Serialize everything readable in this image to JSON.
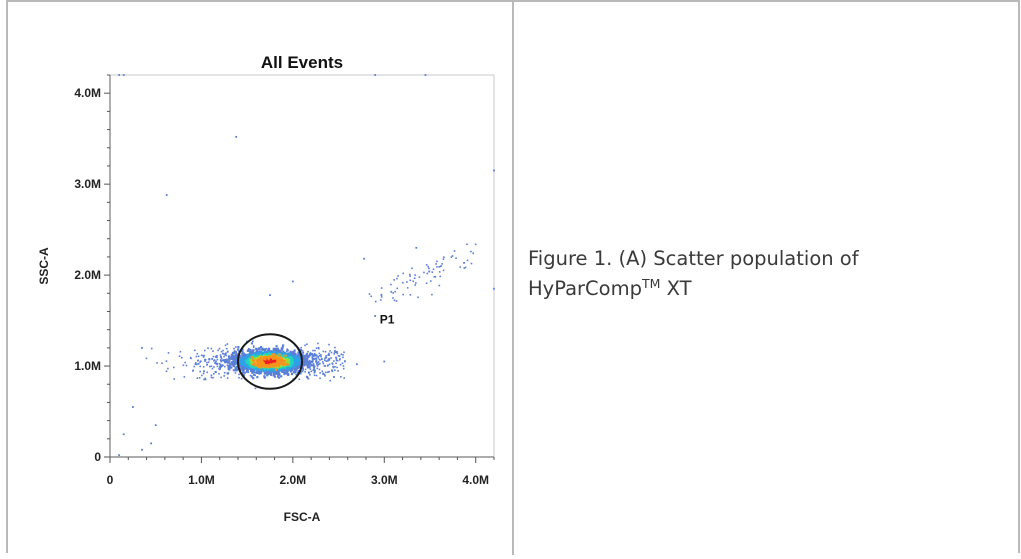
{
  "chart_data": {
    "type": "scatter",
    "title": "All Events",
    "xlabel": "FSC-A",
    "ylabel": "SSC-A",
    "xlim": [
      0,
      4.2
    ],
    "ylim": [
      0,
      4.2
    ],
    "x_ticks": [
      {
        "value": 0,
        "label": "0"
      },
      {
        "value": 1,
        "label": "1.0M"
      },
      {
        "value": 2,
        "label": "2.0M"
      },
      {
        "value": 3,
        "label": "3.0M"
      },
      {
        "value": 4,
        "label": "4.0M"
      }
    ],
    "y_ticks": [
      {
        "value": 0,
        "label": "0"
      },
      {
        "value": 1,
        "label": "1.0M"
      },
      {
        "value": 2,
        "label": "2.0M"
      },
      {
        "value": 3,
        "label": "3.0M"
      },
      {
        "value": 4,
        "label": "4.0M"
      }
    ],
    "gate": {
      "label": "P1",
      "center": [
        1.75,
        1.05
      ],
      "radius_x": 0.35,
      "radius_y": 0.3
    },
    "gate_label_position": [
      2.95,
      1.47
    ],
    "population_main": {
      "center": [
        1.75,
        1.05
      ],
      "spread_x": 0.45,
      "spread_y": 0.07,
      "range_x": [
        0.2,
        2.6
      ]
    },
    "population_secondary": {
      "center": [
        3.45,
        2.0
      ],
      "spread_x": 0.3,
      "spread_y": 0.08
    },
    "outliers": [
      [
        0.1,
        0.02
      ],
      [
        0.15,
        0.25
      ],
      [
        0.25,
        0.55
      ],
      [
        0.35,
        0.08
      ],
      [
        0.45,
        0.15
      ],
      [
        0.5,
        0.35
      ],
      [
        0.62,
        2.88
      ],
      [
        1.38,
        3.52
      ],
      [
        1.75,
        1.78
      ],
      [
        2.0,
        1.93
      ],
      [
        2.78,
        2.18
      ],
      [
        2.9,
        1.55
      ],
      [
        3.0,
        1.05
      ],
      [
        3.35,
        2.3
      ],
      [
        4.2,
        3.15
      ],
      [
        4.2,
        1.85
      ],
      [
        0.1,
        4.2
      ],
      [
        0.15,
        4.2
      ],
      [
        2.9,
        4.2
      ],
      [
        3.45,
        4.2
      ],
      [
        0.35,
        1.2
      ],
      [
        2.45,
        0.88
      ],
      [
        2.7,
        1.02
      ]
    ],
    "density_colors": [
      "#5b7fd6",
      "#2fa0e6",
      "#22d3c0",
      "#8fe23a",
      "#f0e62a",
      "#f7931e",
      "#ec1c24"
    ],
    "ellipse_color": "#1a1a1a"
  },
  "caption": {
    "prefix": "Figure 1. (A) Scatter population of",
    "product": "HyParComp",
    "superscript": "TM",
    "suffix": " XT"
  }
}
